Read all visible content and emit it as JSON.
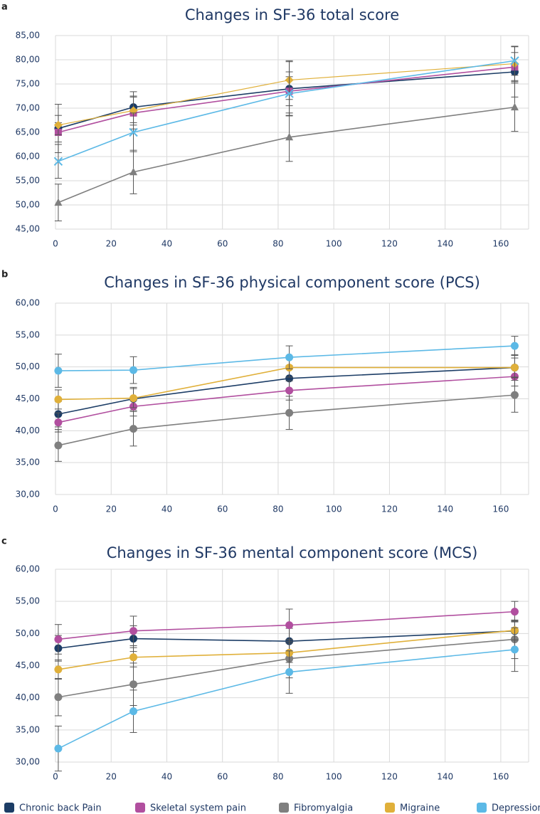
{
  "chart_data": [
    {
      "panel": "a",
      "type": "line",
      "title": "Changes in SF-36 total score",
      "xlim": [
        0,
        170
      ],
      "xticks": [
        0,
        20,
        40,
        60,
        80,
        100,
        120,
        140,
        160
      ],
      "xticklabels": [
        "0",
        "20",
        "40",
        "60",
        "80",
        "100",
        "120",
        "140",
        "160"
      ],
      "ylim": [
        45,
        85
      ],
      "yticks": [
        45,
        50,
        55,
        60,
        65,
        70,
        75,
        80,
        85
      ],
      "yticklabels": [
        "45,00",
        "50,00",
        "55,00",
        "60,00",
        "65,00",
        "70,00",
        "75,00",
        "80,00",
        "85,00"
      ],
      "grid": true,
      "x": [
        1,
        28,
        84,
        165
      ],
      "series": [
        {
          "name": "Chronic back Pain",
          "values": [
            65.8,
            70.2,
            74.0,
            77.5
          ],
          "errors": [
            5.0,
            3.2,
            5.6,
            5.2
          ],
          "marker": "circle"
        },
        {
          "name": "Skeletal system pain",
          "values": [
            65.0,
            69.0,
            73.5,
            78.5
          ],
          "errors": [
            2.0,
            3.3,
            3.0,
            3.0
          ],
          "marker": "square"
        },
        {
          "name": "Fibromyalgia",
          "values": [
            50.5,
            56.8,
            64.0,
            70.2
          ],
          "errors": [
            3.8,
            4.5,
            5.0,
            5.0
          ],
          "marker": "triangle"
        },
        {
          "name": "Migraine",
          "values": [
            66.5,
            69.5,
            75.8,
            79.2
          ],
          "errors": [
            2.0,
            3.0,
            4.0,
            3.5
          ],
          "marker": "diamond"
        },
        {
          "name": "Depression",
          "values": [
            59.0,
            65.0,
            73.0,
            79.8
          ],
          "errors": [
            3.5,
            4.0,
            4.5,
            3.0
          ],
          "marker": "x"
        }
      ]
    },
    {
      "panel": "b",
      "type": "line",
      "title": "Changes in SF-36 physical component score (PCS)",
      "xlim": [
        0,
        170
      ],
      "xticks": [
        0,
        20,
        40,
        60,
        80,
        100,
        120,
        140,
        160
      ],
      "xticklabels": [
        "0",
        "20",
        "40",
        "60",
        "80",
        "100",
        "120",
        "140",
        "160"
      ],
      "ylim": [
        30,
        60
      ],
      "yticks": [
        30,
        35,
        40,
        45,
        50,
        55,
        60
      ],
      "yticklabels": [
        "30,00",
        "35,00",
        "40,00",
        "45,00",
        "50,00",
        "55,00",
        "60,00"
      ],
      "grid": true,
      "x": [
        1,
        28,
        84,
        165
      ],
      "series": [
        {
          "name": "Chronic back Pain",
          "values": [
            42.6,
            45.0,
            48.2,
            49.9
          ],
          "errors": [
            2.0,
            1.8,
            2.0,
            2.0
          ],
          "marker": "circle"
        },
        {
          "name": "Skeletal system pain",
          "values": [
            41.3,
            43.8,
            46.3,
            48.5
          ],
          "errors": [
            1.5,
            1.5,
            1.5,
            1.5
          ],
          "marker": "circle"
        },
        {
          "name": "Fibromyalgia",
          "values": [
            37.7,
            40.3,
            42.8,
            45.6
          ],
          "errors": [
            2.5,
            2.7,
            2.6,
            2.7
          ],
          "marker": "circle"
        },
        {
          "name": "Migraine",
          "values": [
            44.9,
            45.1,
            49.9,
            49.9
          ],
          "errors": [
            1.5,
            1.5,
            1.5,
            1.5
          ],
          "marker": "circle"
        },
        {
          "name": "Depression",
          "values": [
            49.4,
            49.5,
            51.5,
            53.3
          ],
          "errors": [
            2.6,
            2.1,
            1.8,
            1.5
          ],
          "marker": "circle"
        }
      ]
    },
    {
      "panel": "c",
      "type": "line",
      "title": "Changes in SF-36 mental component score (MCS)",
      "xlim": [
        0,
        170
      ],
      "xticks": [
        0,
        20,
        40,
        60,
        80,
        100,
        120,
        140,
        160
      ],
      "xticklabels": [
        "0",
        "20",
        "40",
        "60",
        "80",
        "100",
        "120",
        "140",
        "160"
      ],
      "ylim": [
        30,
        60
      ],
      "yticks": [
        30,
        35,
        40,
        45,
        50,
        55,
        60
      ],
      "yticklabels": [
        "30,00",
        "35,00",
        "40,00",
        "45,00",
        "50,00",
        "55,00",
        "60,00"
      ],
      "grid": true,
      "x": [
        1,
        28,
        84,
        165
      ],
      "series": [
        {
          "name": "Chronic back Pain",
          "values": [
            47.7,
            49.2,
            48.8,
            50.4
          ],
          "errors": [
            2.0,
            2.0,
            2.0,
            1.5
          ],
          "marker": "circle"
        },
        {
          "name": "Skeletal system pain",
          "values": [
            49.1,
            50.4,
            51.3,
            53.4
          ],
          "errors": [
            2.3,
            2.3,
            2.5,
            1.6
          ],
          "marker": "circle"
        },
        {
          "name": "Fibromyalgia",
          "values": [
            40.1,
            42.1,
            46.1,
            49.1
          ],
          "errors": [
            2.9,
            3.3,
            3.0,
            3.0
          ],
          "marker": "circle"
        },
        {
          "name": "Migraine",
          "values": [
            44.4,
            46.3,
            47.0,
            50.5
          ],
          "errors": [
            1.5,
            1.5,
            1.5,
            1.5
          ],
          "marker": "circle"
        },
        {
          "name": "Depression",
          "values": [
            32.1,
            37.9,
            44.0,
            47.5
          ],
          "errors": [
            3.5,
            3.3,
            3.3,
            3.4
          ],
          "marker": "circle"
        }
      ]
    }
  ],
  "legend": {
    "items": [
      {
        "name": "Chronic back Pain",
        "color": "#1c3d66"
      },
      {
        "name": "Skeletal system pain",
        "color": "#b14f9f"
      },
      {
        "name": "Fibromyalgia",
        "color": "#7f7f7f"
      },
      {
        "name": "Migraine",
        "color": "#e0b03a"
      },
      {
        "name": "Depression",
        "color": "#5cb9e6"
      }
    ]
  },
  "colors": {
    "Chronic back Pain": "#1c3d66",
    "Skeletal system pain": "#b14f9f",
    "Fibromyalgia": "#7f7f7f",
    "Migraine": "#e0b03a",
    "Depression": "#5cb9e6",
    "grid": "#d9d9d9",
    "text": "#1f3864"
  }
}
